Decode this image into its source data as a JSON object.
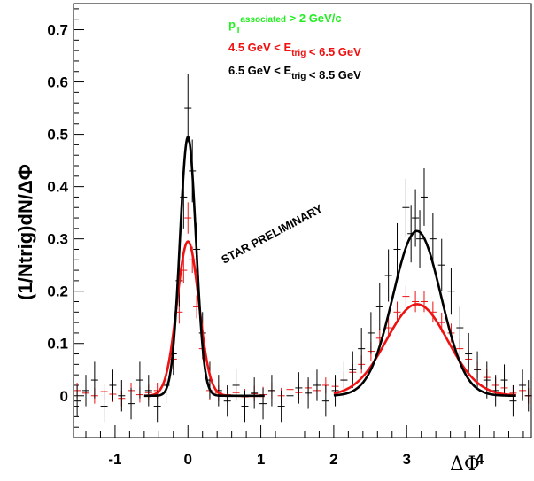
{
  "chart_data": {
    "type": "scatter",
    "title": "",
    "xlabel": "ΔΦ",
    "ylabel": "(1/Ntrig)dN/ΔΦ",
    "xlim": [
      -1.57,
      4.71
    ],
    "ylim": [
      -0.08,
      0.75
    ],
    "x_ticks": [
      -1,
      0,
      1,
      2,
      3,
      4
    ],
    "y_ticks": [
      0,
      0.1,
      0.2,
      0.3,
      0.4,
      0.5,
      0.6,
      0.7
    ],
    "x_tick_labels": [
      "-1",
      "0",
      "1",
      "2",
      "3",
      "4"
    ],
    "y_tick_labels": [
      "0",
      "0.1",
      "0.2",
      "0.3",
      "0.4",
      "0.5",
      "0.6",
      "0.7"
    ],
    "grid": false,
    "legend_placement": "top-center",
    "legend": [
      {
        "parts": [
          [
            "p",
            ""
          ],
          [
            "T",
            "sub"
          ],
          [
            "associated",
            "sup"
          ],
          [
            " > 2 GeV/c",
            ""
          ]
        ],
        "color": "#22ee22"
      },
      {
        "parts": [
          [
            "4.5 GeV < E",
            ""
          ],
          [
            "trig",
            "sub"
          ],
          [
            " < 6.5 GeV",
            ""
          ]
        ],
        "color": "#ee1111"
      },
      {
        "parts": [
          [
            "6.5 GeV < E",
            ""
          ],
          [
            "trig",
            "sub"
          ],
          [
            " < 8.5 GeV",
            ""
          ]
        ],
        "color": "#000000"
      }
    ],
    "annotation": "STAR PRELIMINARY",
    "series": [
      {
        "color": "#ee1111",
        "fit": {
          "near_amp": 0.295,
          "near_sigma": 0.15,
          "away_amp": 0.175,
          "away_sigma": 0.42,
          "baseline": 0.0
        },
        "points": [
          [
            -1.52,
            0.01,
            0.015
          ],
          [
            -1.4,
            0.005,
            0.015
          ],
          [
            -1.28,
            0.0,
            0.015
          ],
          [
            -1.15,
            0.008,
            0.015
          ],
          [
            -1.03,
            0.003,
            0.015
          ],
          [
            -0.91,
            -0.005,
            0.015
          ],
          [
            -0.78,
            0.01,
            0.015
          ],
          [
            -0.66,
            0.002,
            0.015
          ],
          [
            -0.54,
            0.006,
            0.015
          ],
          [
            -0.42,
            0.01,
            0.015
          ],
          [
            -0.3,
            0.02,
            0.018
          ],
          [
            -0.2,
            0.07,
            0.02
          ],
          [
            -0.12,
            0.16,
            0.022
          ],
          [
            -0.06,
            0.24,
            0.025
          ],
          [
            0.0,
            0.34,
            0.03
          ],
          [
            0.06,
            0.26,
            0.025
          ],
          [
            0.12,
            0.17,
            0.022
          ],
          [
            0.2,
            0.09,
            0.02
          ],
          [
            0.3,
            0.01,
            0.018
          ],
          [
            0.42,
            0.005,
            0.015
          ],
          [
            0.54,
            0.002,
            0.015
          ],
          [
            0.66,
            0.006,
            0.015
          ],
          [
            0.78,
            -0.002,
            0.015
          ],
          [
            0.91,
            0.004,
            0.015
          ],
          [
            1.03,
            0.002,
            0.015
          ],
          [
            1.15,
            0.01,
            0.015
          ],
          [
            1.28,
            0.0,
            0.015
          ],
          [
            1.4,
            0.012,
            0.015
          ],
          [
            1.52,
            0.006,
            0.015
          ],
          [
            1.65,
            0.015,
            0.015
          ],
          [
            1.77,
            0.01,
            0.015
          ],
          [
            1.89,
            0.02,
            0.015
          ],
          [
            2.02,
            0.018,
            0.015
          ],
          [
            2.14,
            0.03,
            0.016
          ],
          [
            2.26,
            0.045,
            0.016
          ],
          [
            2.38,
            0.06,
            0.017
          ],
          [
            2.51,
            0.085,
            0.018
          ],
          [
            2.63,
            0.11,
            0.018
          ],
          [
            2.75,
            0.13,
            0.019
          ],
          [
            2.87,
            0.16,
            0.02
          ],
          [
            2.99,
            0.19,
            0.02
          ],
          [
            3.12,
            0.18,
            0.02
          ],
          [
            3.24,
            0.18,
            0.02
          ],
          [
            3.36,
            0.16,
            0.02
          ],
          [
            3.48,
            0.14,
            0.019
          ],
          [
            3.61,
            0.12,
            0.018
          ],
          [
            3.73,
            0.09,
            0.018
          ],
          [
            3.85,
            0.07,
            0.017
          ],
          [
            3.97,
            0.05,
            0.016
          ],
          [
            4.1,
            0.035,
            0.016
          ],
          [
            4.22,
            0.02,
            0.015
          ],
          [
            4.34,
            0.015,
            0.015
          ],
          [
            4.46,
            0.005,
            0.015
          ],
          [
            4.59,
            0.01,
            0.015
          ],
          [
            4.67,
            0.0,
            0.015
          ]
        ]
      },
      {
        "color": "#000000",
        "fit": {
          "near_amp": 0.495,
          "near_sigma": 0.11,
          "away_amp": 0.315,
          "away_sigma": 0.33,
          "baseline": 0.0
        },
        "points": [
          [
            -1.52,
            -0.01,
            0.03
          ],
          [
            -1.4,
            0.01,
            0.03
          ],
          [
            -1.28,
            0.03,
            0.035
          ],
          [
            -1.15,
            -0.02,
            0.03
          ],
          [
            -1.03,
            0.02,
            0.03
          ],
          [
            -0.91,
            0.0,
            0.03
          ],
          [
            -0.78,
            -0.015,
            0.03
          ],
          [
            -0.66,
            0.03,
            0.035
          ],
          [
            -0.54,
            0.01,
            0.03
          ],
          [
            -0.42,
            -0.02,
            0.03
          ],
          [
            -0.3,
            0.02,
            0.035
          ],
          [
            -0.2,
            0.08,
            0.04
          ],
          [
            -0.12,
            0.22,
            0.05
          ],
          [
            -0.06,
            0.38,
            0.06
          ],
          [
            0.0,
            0.55,
            0.065
          ],
          [
            0.06,
            0.43,
            0.06
          ],
          [
            0.12,
            0.28,
            0.05
          ],
          [
            0.2,
            0.12,
            0.04
          ],
          [
            0.3,
            0.03,
            0.035
          ],
          [
            0.42,
            0.01,
            0.03
          ],
          [
            0.54,
            -0.01,
            0.03
          ],
          [
            0.66,
            0.02,
            0.03
          ],
          [
            0.78,
            -0.02,
            0.03
          ],
          [
            0.91,
            0.005,
            0.03
          ],
          [
            1.03,
            -0.015,
            0.03
          ],
          [
            1.15,
            0.01,
            0.03
          ],
          [
            1.28,
            -0.02,
            0.03
          ],
          [
            1.4,
            0.0,
            0.03
          ],
          [
            1.52,
            0.015,
            0.03
          ],
          [
            1.65,
            0.005,
            0.03
          ],
          [
            1.77,
            0.02,
            0.03
          ],
          [
            1.89,
            -0.01,
            0.03
          ],
          [
            2.02,
            0.01,
            0.03
          ],
          [
            2.14,
            0.03,
            0.035
          ],
          [
            2.26,
            0.05,
            0.035
          ],
          [
            2.38,
            0.09,
            0.04
          ],
          [
            2.51,
            0.12,
            0.04
          ],
          [
            2.63,
            0.17,
            0.045
          ],
          [
            2.75,
            0.23,
            0.05
          ],
          [
            2.87,
            0.28,
            0.05
          ],
          [
            2.99,
            0.36,
            0.055
          ],
          [
            3.06,
            0.31,
            0.055
          ],
          [
            3.12,
            0.34,
            0.055
          ],
          [
            3.18,
            0.3,
            0.055
          ],
          [
            3.24,
            0.38,
            0.055
          ],
          [
            3.36,
            0.3,
            0.05
          ],
          [
            3.48,
            0.25,
            0.05
          ],
          [
            3.61,
            0.2,
            0.045
          ],
          [
            3.73,
            0.13,
            0.04
          ],
          [
            3.85,
            0.08,
            0.04
          ],
          [
            3.97,
            0.05,
            0.035
          ],
          [
            4.1,
            0.03,
            0.035
          ],
          [
            4.22,
            0.01,
            0.03
          ],
          [
            4.34,
            0.03,
            0.03
          ],
          [
            4.46,
            -0.01,
            0.03
          ],
          [
            4.59,
            0.02,
            0.03
          ],
          [
            4.67,
            0.0,
            0.03
          ]
        ]
      }
    ]
  }
}
